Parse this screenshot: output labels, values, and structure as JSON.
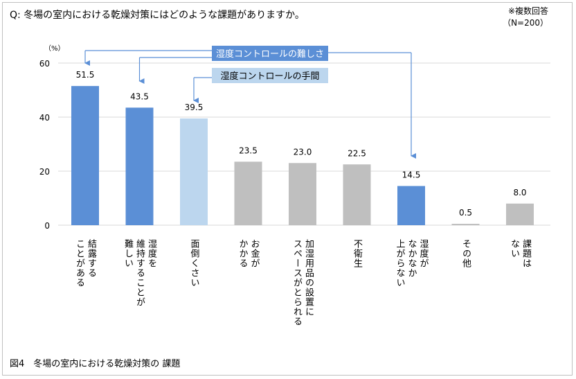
{
  "question": "Q: 冬場の室内における乾燥対策にはどのような課題がありますか。",
  "note_line1": "※複数回答",
  "note_line2": "（N=200）",
  "caption": "図4　冬場の室内における乾燥対策の 課題",
  "chart_data": {
    "type": "bar",
    "y_unit": "（%）",
    "ylim": [
      0,
      60
    ],
    "yticks": [
      0,
      20,
      40,
      60
    ],
    "grid": true,
    "categories": [
      "結露する\nことがある",
      "湿度を\n維持することが\n難しい",
      "面倒くさい",
      "お金が\nかかる",
      "加湿用品の設置に\nスペースがとられる",
      "不衛生",
      "湿度が\nなかなか\n上がらない",
      "その他",
      "課題は\nない"
    ],
    "values": [
      51.5,
      43.5,
      39.5,
      23.5,
      23.0,
      22.5,
      14.5,
      0.5,
      8.0
    ],
    "value_labels": [
      "51.5",
      "43.5",
      "39.5",
      "23.5",
      "23.0",
      "22.5",
      "14.5",
      "0.5",
      "8.0"
    ],
    "bar_colors": [
      "#5b8fd6",
      "#5b8fd6",
      "#bcd6ee",
      "#bfbfbf",
      "#bfbfbf",
      "#bfbfbf",
      "#5b8fd6",
      "#bfbfbf",
      "#bfbfbf"
    ],
    "annotations": [
      {
        "text": "湿度コントロールの難しさ",
        "color": "#5b8fd6",
        "text_color": "#ffffff",
        "targets": [
          0,
          1,
          6
        ]
      },
      {
        "text": "湿度コントロールの手間",
        "color": "#bcd6ee",
        "text_color": "#000000",
        "targets": [
          2
        ]
      }
    ]
  }
}
